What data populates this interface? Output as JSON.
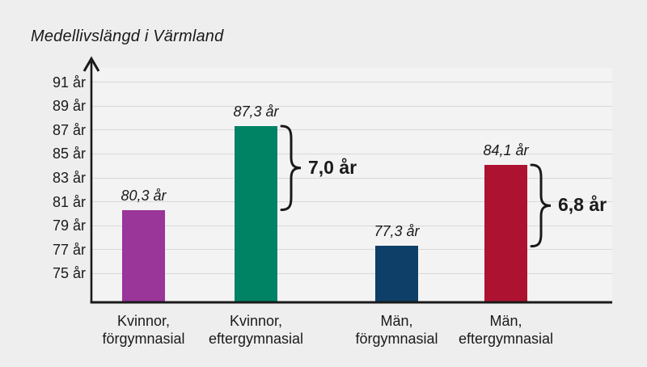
{
  "chart_data": {
    "type": "bar",
    "title": "Medellivslängd i Värmland",
    "unit": "år",
    "legend": false,
    "grid": true,
    "y_axis": {
      "range_shown": [
        75,
        91
      ],
      "tick_step": 2,
      "ticks": [
        {
          "value": 91,
          "label": "91 år"
        },
        {
          "value": 89,
          "label": "89 år"
        },
        {
          "value": 87,
          "label": "87 år"
        },
        {
          "value": 85,
          "label": "85 år"
        },
        {
          "value": 83,
          "label": "83 år"
        },
        {
          "value": 81,
          "label": "81 år"
        },
        {
          "value": 79,
          "label": "79 år"
        },
        {
          "value": 77,
          "label": "77 år"
        },
        {
          "value": 75,
          "label": "75 år"
        }
      ]
    },
    "bars": [
      {
        "name": "kvinnor-forgymnasial",
        "category_lines": [
          "Kvinnor,",
          "förgymnasial"
        ],
        "value": 80.3,
        "value_label": "80,3 år",
        "color": "#9a3599"
      },
      {
        "name": "kvinnor-eftergymnasial",
        "category_lines": [
          "Kvinnor,",
          "eftergymnasial"
        ],
        "value": 87.3,
        "value_label": "87,3 år",
        "color": "#008265"
      },
      {
        "name": "man-forgymnasial",
        "category_lines": [
          "Män,",
          "förgymnasial"
        ],
        "value": 77.3,
        "value_label": "77,3 år",
        "color": "#0d3f68"
      },
      {
        "name": "man-eftergymnasial",
        "category_lines": [
          "Män,",
          "eftergymnasial"
        ],
        "value": 84.1,
        "value_label": "84,1 år",
        "color": "#ae1231"
      }
    ],
    "braces": [
      {
        "label": "7,0 år",
        "top_bar": 1,
        "bottom_bar": 0
      },
      {
        "label": "6,8 år",
        "top_bar": 3,
        "bottom_bar": 2
      }
    ]
  },
  "colors": {
    "background": "#eeeeee",
    "plot_background": "#f3f3f3",
    "gridline": "#d8d8d8",
    "axis": "#1a1a1a",
    "text": "#1a1a1a"
  }
}
